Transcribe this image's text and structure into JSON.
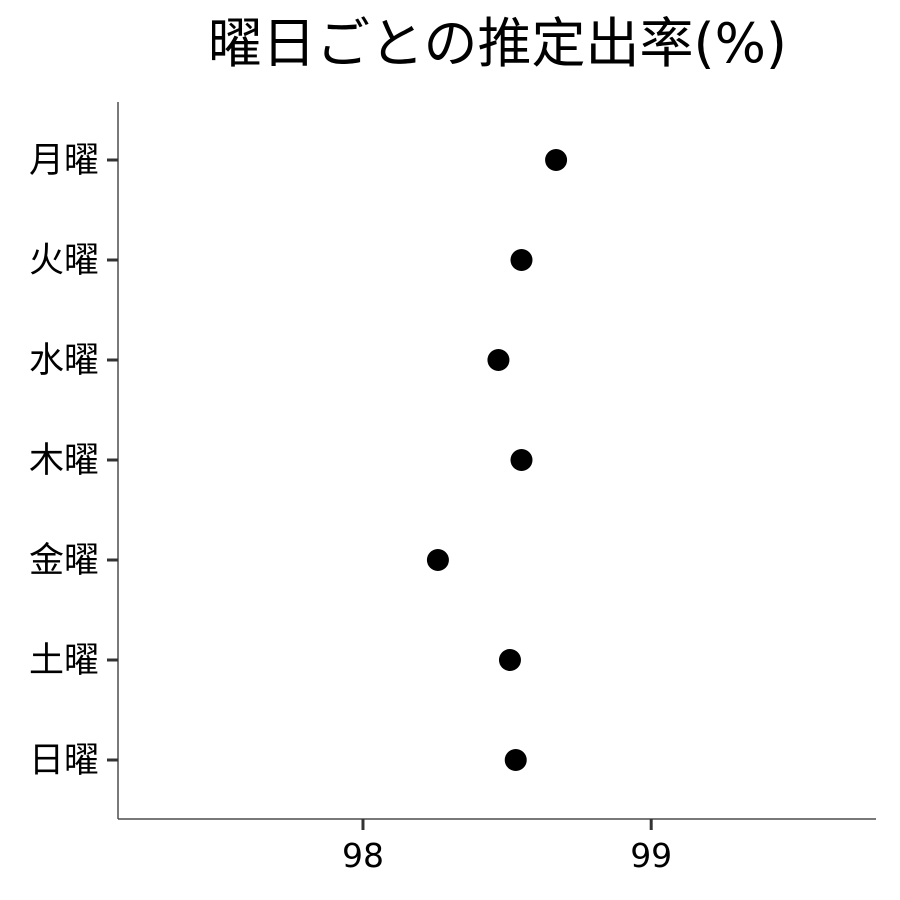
{
  "chart_data": {
    "type": "scatter",
    "title": "曜日ごとの推定出率(%)",
    "xlabel": "",
    "ylabel": "",
    "categories": [
      "月曜",
      "火曜",
      "水曜",
      "木曜",
      "金曜",
      "土曜",
      "日曜"
    ],
    "values": [
      98.67,
      98.55,
      98.47,
      98.55,
      98.26,
      98.51,
      98.53
    ],
    "xlim": [
      97.15,
      99.78
    ],
    "xticks": [
      98,
      99
    ],
    "xtick_labels": [
      "98",
      "99"
    ],
    "grid": false,
    "point_color": "#000000",
    "axis_color": "#4d4d4d"
  }
}
